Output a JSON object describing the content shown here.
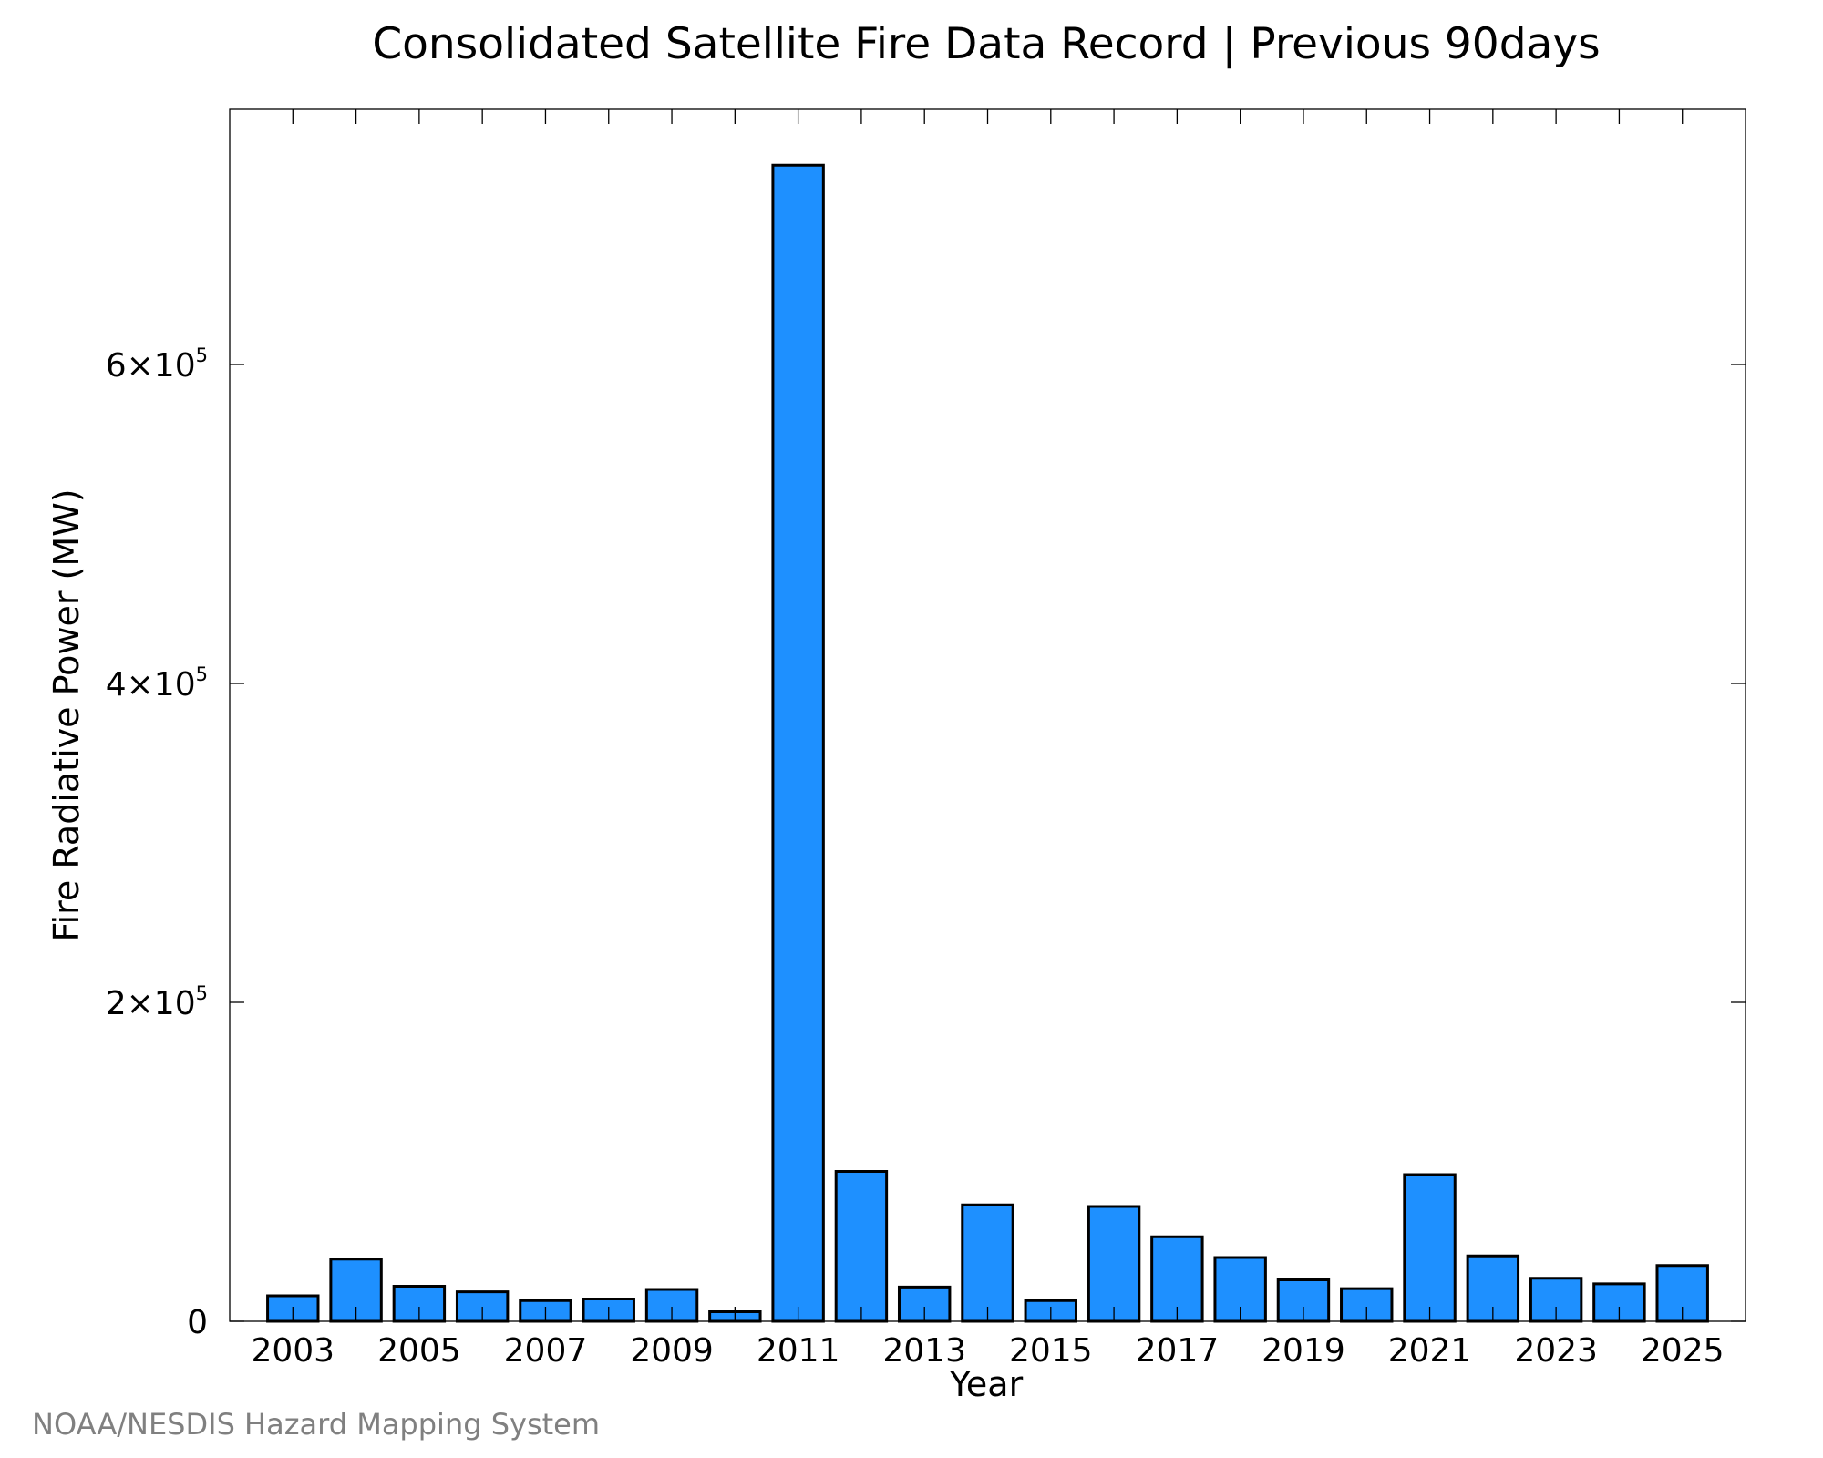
{
  "footer": {
    "credit": "NOAA/NESDIS Hazard Mapping System"
  },
  "colors": {
    "bar_fill": "#1E90FF",
    "bar_stroke": "#000000",
    "credit_text": "#808080"
  },
  "chart_data": {
    "type": "bar",
    "title": "Consolidated Satellite Fire Data Record | Previous 90days",
    "xlabel": "Year",
    "ylabel": "Fire Radiative Power (MW)",
    "categories": [
      2003,
      2004,
      2005,
      2006,
      2007,
      2008,
      2009,
      2010,
      2011,
      2012,
      2013,
      2014,
      2015,
      2016,
      2017,
      2018,
      2019,
      2020,
      2021,
      2022,
      2023,
      2024,
      2025
    ],
    "values": [
      16000,
      39000,
      22000,
      18500,
      13000,
      14000,
      20000,
      6000,
      725000,
      94000,
      21500,
      73000,
      13000,
      72000,
      53000,
      40000,
      26000,
      20500,
      92000,
      41000,
      27000,
      23500,
      35000
    ],
    "xlim": [
      2002,
      2026
    ],
    "ylim": [
      0,
      760000
    ],
    "x_ticks": [
      2003,
      2005,
      2007,
      2009,
      2011,
      2013,
      2015,
      2017,
      2019,
      2021,
      2023,
      2025
    ],
    "x_minor_ticks": [
      2004,
      2006,
      2008,
      2010,
      2012,
      2014,
      2016,
      2018,
      2020,
      2022,
      2024
    ],
    "y_ticks": [
      {
        "value": 0,
        "mantissa": "0",
        "exponent": ""
      },
      {
        "value": 200000,
        "mantissa": "2×10",
        "exponent": "5"
      },
      {
        "value": 400000,
        "mantissa": "4×10",
        "exponent": "5"
      },
      {
        "value": 600000,
        "mantissa": "6×10",
        "exponent": "5"
      }
    ],
    "grid": false,
    "legend": "none"
  }
}
